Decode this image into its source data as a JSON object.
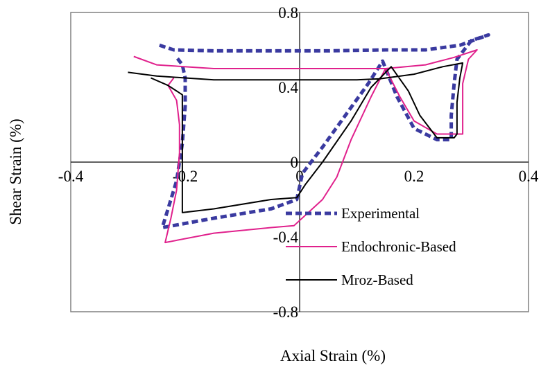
{
  "chart_data": {
    "type": "line",
    "title": "",
    "xlabel": "Axial Strain (%)",
    "ylabel": "Shear Strain (%)",
    "xlim": [
      -0.4,
      0.4
    ],
    "ylim": [
      -0.8,
      0.8
    ],
    "x_ticks": [
      -0.4,
      -0.2,
      0,
      0.2,
      0.4
    ],
    "y_ticks": [
      -0.8,
      -0.4,
      0,
      0.4,
      0.8
    ],
    "x_tick_labels": [
      "-0.4",
      "-0.2",
      "0",
      "0.2",
      "0.4"
    ],
    "y_tick_labels": [
      "-0.8",
      "-0.4",
      "0",
      "0.4",
      "0.8"
    ],
    "grid": false,
    "legend_position": "bottom-right, inside",
    "series": [
      {
        "name": "Experimental",
        "color": "#3A3AA0",
        "style": "dashed",
        "points": [
          [
            -0.245,
            0.625
          ],
          [
            -0.22,
            0.6
          ],
          [
            -0.15,
            0.595
          ],
          [
            -0.05,
            0.595
          ],
          [
            0.05,
            0.595
          ],
          [
            0.15,
            0.6
          ],
          [
            0.22,
            0.6
          ],
          [
            0.28,
            0.625
          ],
          [
            0.33,
            0.68
          ],
          [
            0.3,
            0.65
          ],
          [
            0.275,
            0.55
          ],
          [
            0.27,
            0.42
          ],
          [
            0.265,
            0.25
          ],
          [
            0.265,
            0.12
          ],
          [
            0.24,
            0.12
          ],
          [
            0.2,
            0.18
          ],
          [
            0.17,
            0.35
          ],
          [
            0.145,
            0.54
          ],
          [
            0.12,
            0.42
          ],
          [
            0.08,
            0.25
          ],
          [
            0.04,
            0.08
          ],
          [
            0.005,
            -0.06
          ],
          [
            -0.005,
            -0.2
          ],
          [
            -0.05,
            -0.25
          ],
          [
            -0.15,
            -0.3
          ],
          [
            -0.24,
            -0.35
          ],
          [
            -0.23,
            -0.25
          ],
          [
            -0.215,
            -0.1
          ],
          [
            -0.205,
            0.1
          ],
          [
            -0.2,
            0.3
          ],
          [
            -0.2,
            0.45
          ],
          [
            -0.205,
            0.52
          ],
          [
            -0.215,
            0.56
          ]
        ]
      },
      {
        "name": "Endochronic-Based",
        "color": "#E0208C",
        "style": "solid",
        "points": [
          [
            -0.29,
            0.565
          ],
          [
            -0.25,
            0.52
          ],
          [
            -0.15,
            0.5
          ],
          [
            0,
            0.5
          ],
          [
            0.15,
            0.5
          ],
          [
            0.22,
            0.52
          ],
          [
            0.27,
            0.56
          ],
          [
            0.31,
            0.6
          ],
          [
            0.295,
            0.55
          ],
          [
            0.285,
            0.42
          ],
          [
            0.285,
            0.28
          ],
          [
            0.285,
            0.15
          ],
          [
            0.24,
            0.15
          ],
          [
            0.2,
            0.22
          ],
          [
            0.175,
            0.35
          ],
          [
            0.15,
            0.5
          ],
          [
            0.125,
            0.35
          ],
          [
            0.09,
            0.12
          ],
          [
            0.065,
            -0.08
          ],
          [
            0.04,
            -0.2
          ],
          [
            -0.01,
            -0.34
          ],
          [
            -0.05,
            -0.35
          ],
          [
            -0.15,
            -0.38
          ],
          [
            -0.235,
            -0.43
          ],
          [
            -0.225,
            -0.3
          ],
          [
            -0.215,
            -0.15
          ],
          [
            -0.21,
            0.05
          ],
          [
            -0.21,
            0.2
          ],
          [
            -0.215,
            0.33
          ],
          [
            -0.23,
            0.41
          ],
          [
            -0.22,
            0.45
          ]
        ]
      },
      {
        "name": "Mroz-Based",
        "color": "#000000",
        "style": "solid",
        "points": [
          [
            -0.3,
            0.48
          ],
          [
            -0.25,
            0.46
          ],
          [
            -0.15,
            0.44
          ],
          [
            0,
            0.44
          ],
          [
            0.1,
            0.44
          ],
          [
            0.14,
            0.445
          ],
          [
            0.2,
            0.47
          ],
          [
            0.25,
            0.51
          ],
          [
            0.285,
            0.53
          ],
          [
            0.28,
            0.45
          ],
          [
            0.275,
            0.32
          ],
          [
            0.275,
            0.15
          ],
          [
            0.27,
            0.13
          ],
          [
            0.24,
            0.13
          ],
          [
            0.21,
            0.25
          ],
          [
            0.19,
            0.38
          ],
          [
            0.16,
            0.51
          ],
          [
            0.125,
            0.4
          ],
          [
            0.09,
            0.22
          ],
          [
            0.04,
            0.0
          ],
          [
            0.01,
            -0.12
          ],
          [
            -0.005,
            -0.19
          ],
          [
            -0.05,
            -0.2
          ],
          [
            -0.15,
            -0.25
          ],
          [
            -0.205,
            -0.27
          ],
          [
            -0.205,
            -0.15
          ],
          [
            -0.205,
            0.0
          ],
          [
            -0.205,
            0.15
          ],
          [
            -0.205,
            0.28
          ],
          [
            -0.205,
            0.36
          ],
          [
            -0.23,
            0.41
          ],
          [
            -0.26,
            0.45
          ]
        ]
      }
    ]
  }
}
